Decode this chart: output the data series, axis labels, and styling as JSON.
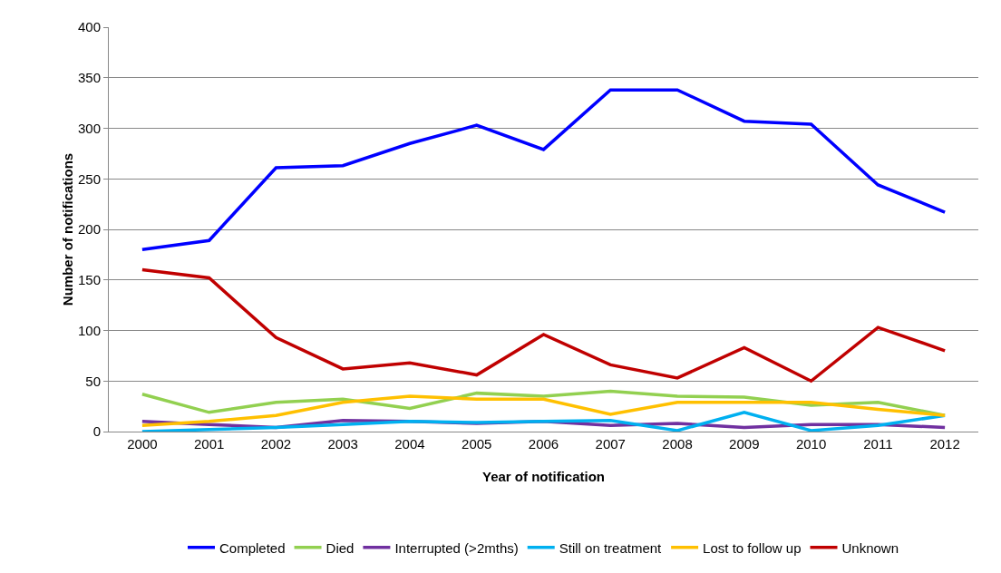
{
  "chart_data": {
    "type": "line",
    "xlabel": "Year of notification",
    "ylabel": "Number of notifications",
    "categories": [
      "2000",
      "2001",
      "2002",
      "2003",
      "2004",
      "2005",
      "2006",
      "2007",
      "2008",
      "2009",
      "2010",
      "2011",
      "2012"
    ],
    "series": [
      {
        "name": "Completed",
        "color": "#0000ff",
        "values": [
          180,
          189,
          261,
          263,
          285,
          303,
          279,
          338,
          338,
          307,
          304,
          244,
          217
        ]
      },
      {
        "name": "Died",
        "color": "#92d050",
        "values": [
          37,
          19,
          29,
          32,
          23,
          38,
          35,
          40,
          35,
          34,
          26,
          29,
          16
        ]
      },
      {
        "name": "Interrupted (>2mths)",
        "color": "#7030a0",
        "values": [
          10,
          7,
          4,
          11,
          10,
          8,
          10,
          6,
          8,
          4,
          7,
          7,
          4
        ]
      },
      {
        "name": "Still on treatment",
        "color": "#00b0f0",
        "values": [
          0,
          2,
          4,
          7,
          10,
          9,
          10,
          11,
          1,
          19,
          1,
          6,
          16
        ]
      },
      {
        "name": "Lost to follow up",
        "color": "#ffc000",
        "values": [
          6,
          10,
          16,
          29,
          35,
          32,
          32,
          17,
          29,
          29,
          29,
          22,
          16
        ]
      },
      {
        "name": "Unknown",
        "color": "#c00000",
        "values": [
          160,
          152,
          93,
          62,
          68,
          56,
          96,
          66,
          53,
          83,
          50,
          103,
          80
        ]
      }
    ],
    "ylim": [
      0,
      400
    ],
    "yticks": [
      0,
      50,
      100,
      150,
      200,
      250,
      300,
      350,
      400
    ],
    "grid": "y",
    "legend": "bottom",
    "marker": "none",
    "line_style": "solid"
  }
}
